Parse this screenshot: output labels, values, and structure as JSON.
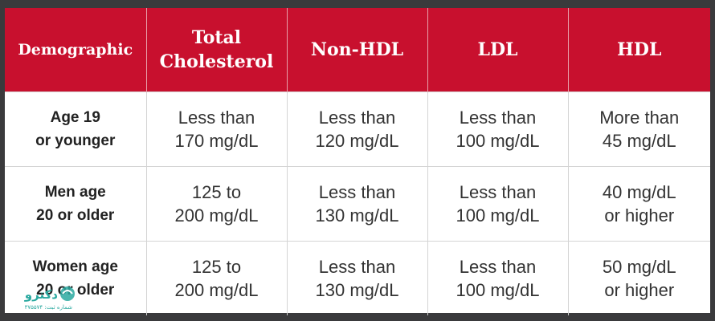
{
  "colors": {
    "header_bg": "#c8102e",
    "header_text": "#ffffff",
    "body_text": "#333333",
    "frame": "#3a3a3c",
    "logo": "#2aa9a0"
  },
  "table": {
    "headers": [
      {
        "line1": "Demographic",
        "line2": ""
      },
      {
        "line1": "Total",
        "line2": "Cholesterol"
      },
      {
        "line1": "Non-HDL",
        "line2": ""
      },
      {
        "line1": "LDL",
        "line2": ""
      },
      {
        "line1": "HDL",
        "line2": ""
      }
    ],
    "rows": [
      {
        "demographic": {
          "line1": "Age 19",
          "line2": "or younger"
        },
        "total": {
          "line1": "Less than",
          "line2": "170 mg/dL"
        },
        "non_hdl": {
          "line1": "Less than",
          "line2": "120 mg/dL"
        },
        "ldl": {
          "line1": "Less than",
          "line2": "100 mg/dL"
        },
        "hdl": {
          "line1": "More than",
          "line2": "45 mg/dL"
        }
      },
      {
        "demographic": {
          "line1": "Men age",
          "line2": "20 or older"
        },
        "total": {
          "line1": "125 to",
          "line2": "200 mg/dL"
        },
        "non_hdl": {
          "line1": "Less than",
          "line2": "130 mg/dL"
        },
        "ldl": {
          "line1": "Less than",
          "line2": "100 mg/dL"
        },
        "hdl": {
          "line1": "40 mg/dL",
          "line2": "or higher"
        }
      },
      {
        "demographic": {
          "line1": "Women age",
          "line2": "20 or older"
        },
        "total": {
          "line1": "125 to",
          "line2": "200 mg/dL"
        },
        "non_hdl": {
          "line1": "Less than",
          "line2": "130 mg/dL"
        },
        "ldl": {
          "line1": "Less than",
          "line2": "100 mg/dL"
        },
        "hdl": {
          "line1": "50 mg/dL",
          "line2": "or higher"
        }
      }
    ]
  },
  "watermark": {
    "brand": "دکترو",
    "reg_text": "شماره ثبت: ۳۷۵۵۷۴"
  }
}
